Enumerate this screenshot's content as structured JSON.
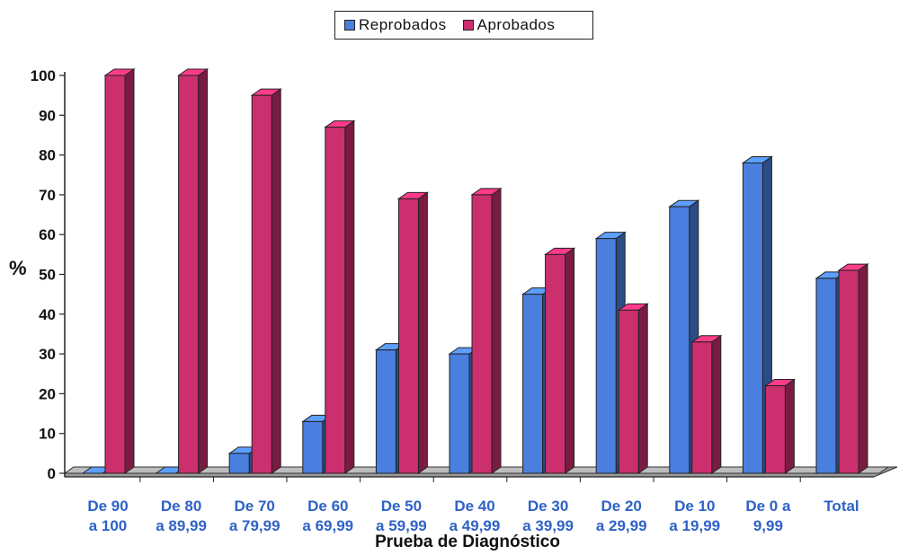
{
  "chart_data": {
    "type": "bar",
    "title": "",
    "xlabel": "Prueba de Diagnóstico",
    "ylabel": "%",
    "ylim": [
      0,
      100
    ],
    "yticks": [
      0,
      10,
      20,
      30,
      40,
      50,
      60,
      70,
      80,
      90,
      100
    ],
    "grid": false,
    "legend_position": "top-center",
    "categories": [
      [
        "De 90",
        "a 100"
      ],
      [
        "De 80",
        "a 89,99"
      ],
      [
        "De 70",
        "a 79,99"
      ],
      [
        "De 60",
        "a 69,99"
      ],
      [
        "De 50",
        "a 59,99"
      ],
      [
        "De 40",
        "a 49,99"
      ],
      [
        "De 30",
        "a 39,99"
      ],
      [
        "De 20",
        "a 29,99"
      ],
      [
        "De 10",
        "a 19,99"
      ],
      [
        "De 0 a",
        "9,99"
      ],
      [
        "Total",
        ""
      ]
    ],
    "series": [
      {
        "name": "Reprobados",
        "color": "#4a7fe0",
        "values": [
          0,
          0,
          5,
          13,
          31,
          30,
          45,
          59,
          67,
          78,
          49
        ]
      },
      {
        "name": "Aprobados",
        "color": "#cc2f6e",
        "values": [
          100,
          100,
          95,
          87,
          69,
          70,
          55,
          41,
          33,
          22,
          51
        ]
      }
    ]
  }
}
